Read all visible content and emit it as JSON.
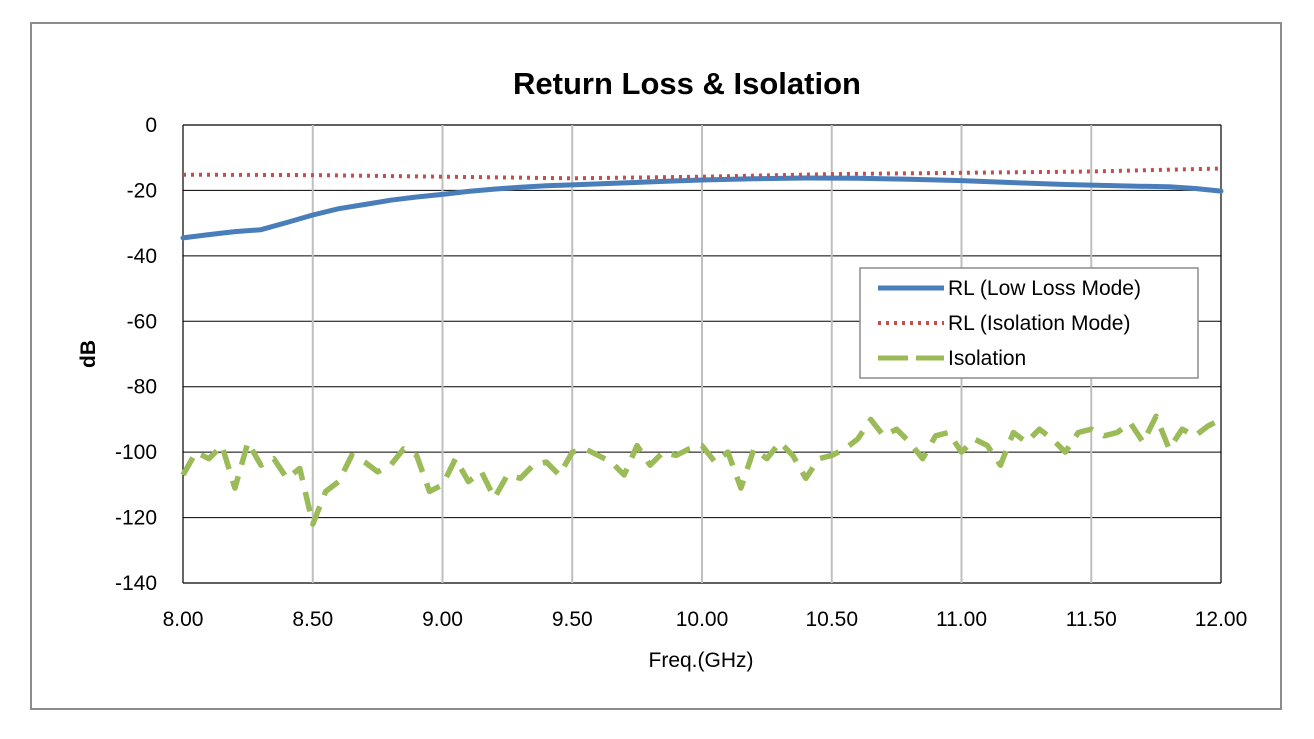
{
  "chart_data": {
    "type": "line",
    "title": "Return Loss & Isolation",
    "xlabel": "Freq.(GHz)",
    "ylabel": "dB",
    "xlim": [
      8.0,
      12.0
    ],
    "ylim": [
      -140,
      0
    ],
    "x_ticks": [
      "8.00",
      "8.50",
      "9.00",
      "9.50",
      "10.00",
      "10.50",
      "11.00",
      "11.50",
      "12.00"
    ],
    "y_ticks": [
      "0",
      "-20",
      "-40",
      "-60",
      "-80",
      "-100",
      "-120",
      "-140"
    ],
    "grid": true,
    "legend_position": "center-right",
    "series": [
      {
        "name": "RL (Low Loss Mode)",
        "color": "#4a7ebb",
        "style": "solid",
        "x": [
          8.0,
          8.1,
          8.2,
          8.3,
          8.4,
          8.5,
          8.6,
          8.7,
          8.8,
          8.9,
          9.0,
          9.1,
          9.2,
          9.3,
          9.4,
          9.5,
          9.6,
          9.7,
          9.8,
          9.9,
          10.0,
          10.2,
          10.4,
          10.6,
          10.8,
          11.0,
          11.2,
          11.4,
          11.6,
          11.8,
          11.9,
          12.0
        ],
        "values": [
          -34.5,
          -33.5,
          -32.6,
          -32.0,
          -29.8,
          -27.5,
          -25.6,
          -24.3,
          -23.0,
          -22.0,
          -21.2,
          -20.3,
          -19.6,
          -19.0,
          -18.6,
          -18.3,
          -18.0,
          -17.7,
          -17.4,
          -17.1,
          -16.8,
          -16.4,
          -16.2,
          -16.3,
          -16.6,
          -17.0,
          -17.6,
          -18.2,
          -18.6,
          -18.9,
          -19.4,
          -20.2
        ]
      },
      {
        "name": "RL (Isolation Mode)",
        "color": "#c0504d",
        "style": "dotted",
        "x": [
          8.0,
          8.5,
          9.0,
          9.5,
          10.0,
          10.5,
          11.0,
          11.5,
          12.0
        ],
        "values": [
          -15.2,
          -15.3,
          -15.8,
          -16.3,
          -15.8,
          -15.0,
          -14.6,
          -14.2,
          -13.3
        ]
      },
      {
        "name": "Isolation",
        "color": "#9bbb59",
        "style": "dashed",
        "x": [
          8.0,
          8.05,
          8.1,
          8.15,
          8.2,
          8.25,
          8.3,
          8.35,
          8.4,
          8.45,
          8.5,
          8.55,
          8.6,
          8.65,
          8.7,
          8.75,
          8.8,
          8.85,
          8.9,
          8.95,
          9.0,
          9.05,
          9.1,
          9.15,
          9.2,
          9.25,
          9.3,
          9.35,
          9.4,
          9.45,
          9.5,
          9.55,
          9.6,
          9.65,
          9.7,
          9.75,
          9.8,
          9.85,
          9.9,
          9.95,
          10.0,
          10.05,
          10.1,
          10.15,
          10.2,
          10.25,
          10.3,
          10.35,
          10.4,
          10.45,
          10.5,
          10.55,
          10.6,
          10.65,
          10.7,
          10.75,
          10.8,
          10.85,
          10.9,
          10.95,
          11.0,
          11.05,
          11.1,
          11.15,
          11.2,
          11.25,
          11.3,
          11.35,
          11.4,
          11.45,
          11.5,
          11.55,
          11.6,
          11.65,
          11.7,
          11.75,
          11.8,
          11.85,
          11.9,
          11.95,
          12.0
        ],
        "values": [
          -107,
          -100,
          -102,
          -98,
          -111,
          -97,
          -104,
          -102,
          -108,
          -105,
          -122,
          -112,
          -109,
          -101,
          -103,
          -106,
          -104,
          -99,
          -101,
          -112,
          -110,
          -102,
          -109,
          -106,
          -114,
          -107,
          -108,
          -104,
          -103,
          -107,
          -100,
          -99,
          -101,
          -103,
          -107,
          -98,
          -104,
          -100,
          -101,
          -99,
          -98,
          -103,
          -100,
          -111,
          -99,
          -102,
          -97,
          -101,
          -108,
          -102,
          -101,
          -99,
          -96,
          -90,
          -95,
          -93,
          -97,
          -102,
          -95,
          -94,
          -100,
          -96,
          -98,
          -104,
          -94,
          -97,
          -93,
          -96,
          -100,
          -94,
          -93,
          -95,
          -94,
          -91,
          -97,
          -89,
          -99,
          -93,
          -95,
          -92,
          -90
        ]
      }
    ]
  }
}
